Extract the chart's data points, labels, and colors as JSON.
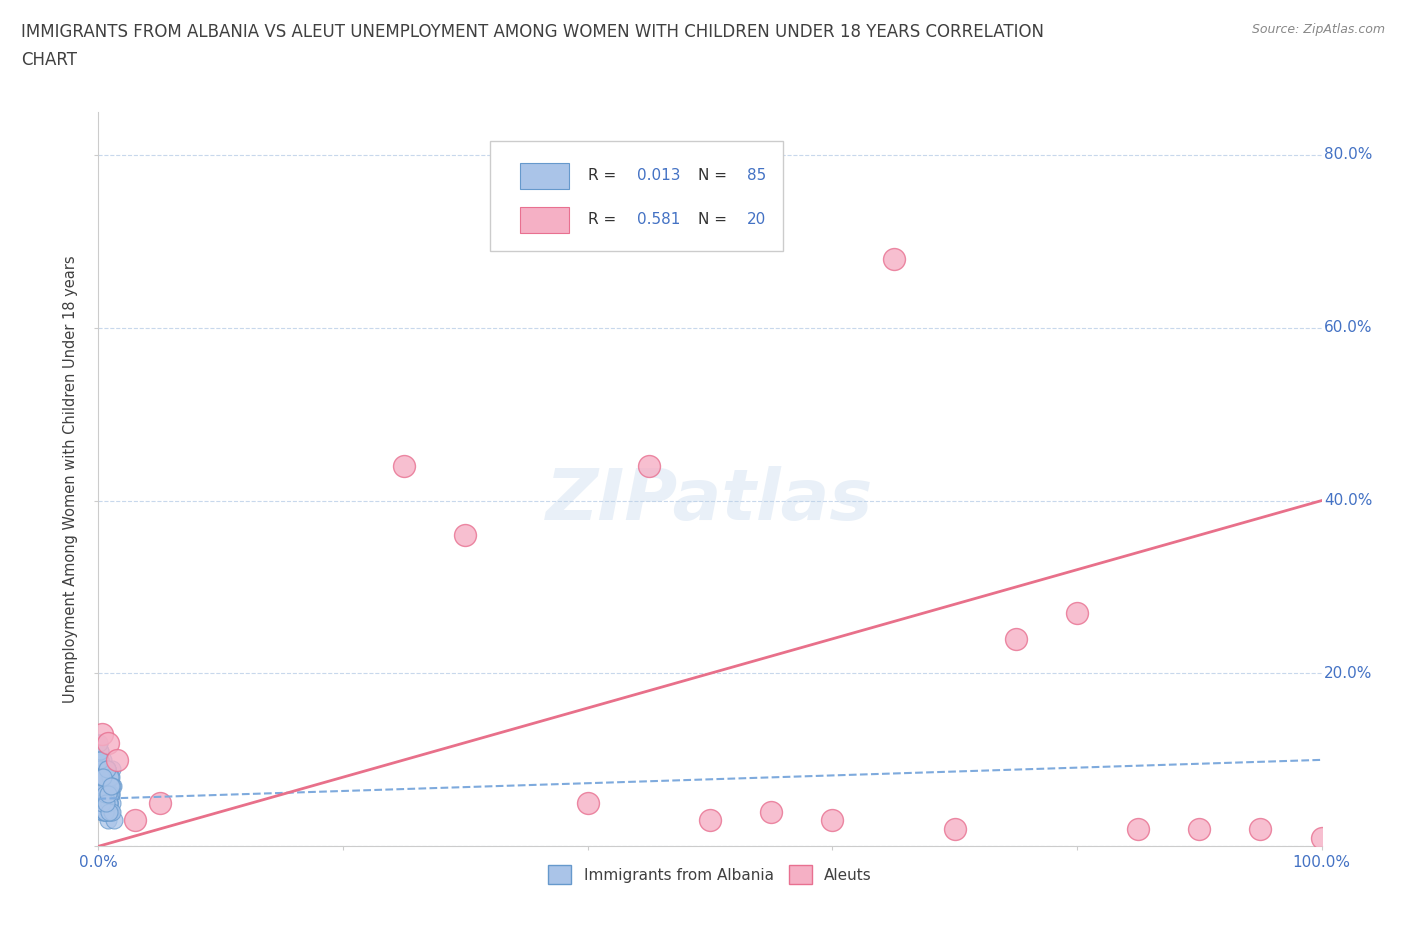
{
  "title_line1": "IMMIGRANTS FROM ALBANIA VS ALEUT UNEMPLOYMENT AMONG WOMEN WITH CHILDREN UNDER 18 YEARS CORRELATION",
  "title_line2": "CHART",
  "source": "Source: ZipAtlas.com",
  "ylabel": "Unemployment Among Women with Children Under 18 years",
  "xlim": [
    0.0,
    100.0
  ],
  "ylim": [
    0.0,
    85.0
  ],
  "xticks": [
    0,
    20,
    40,
    60,
    80,
    100
  ],
  "xticklabels": [
    "0.0%",
    "",
    "",
    "",
    "",
    "100.0%"
  ],
  "yticks": [
    0,
    20,
    40,
    60,
    80
  ],
  "yticklabels_right": [
    "0.0%",
    "20.0%",
    "40.0%",
    "60.0%",
    "80.0%"
  ],
  "albania_x": [
    0.1,
    0.15,
    0.2,
    0.25,
    0.3,
    0.35,
    0.4,
    0.45,
    0.5,
    0.55,
    0.6,
    0.65,
    0.7,
    0.75,
    0.8,
    0.85,
    0.9,
    0.95,
    1.0,
    1.05,
    1.1,
    1.15,
    1.2,
    1.3,
    0.12,
    0.18,
    0.22,
    0.28,
    0.32,
    0.38,
    0.42,
    0.48,
    0.52,
    0.58,
    0.62,
    0.68,
    0.72,
    0.78,
    0.82,
    0.88,
    0.92,
    0.98,
    1.02,
    0.15,
    0.25,
    0.35,
    0.45,
    0.55,
    0.65,
    0.75,
    0.85,
    0.95,
    0.08,
    0.13,
    0.23,
    0.33,
    0.43,
    0.53,
    0.63,
    0.73,
    0.83,
    0.93,
    1.03,
    0.17,
    0.27,
    0.37,
    0.47,
    0.57,
    0.67,
    0.77,
    0.87,
    0.97,
    1.07,
    0.05,
    0.1,
    0.2,
    0.3,
    0.5,
    0.7,
    0.9,
    1.1,
    0.4,
    0.6,
    0.8,
    1.0
  ],
  "albania_y": [
    5,
    8,
    6,
    9,
    4,
    7,
    10,
    6,
    5,
    8,
    7,
    4,
    9,
    6,
    3,
    8,
    5,
    7,
    6,
    4,
    9,
    5,
    7,
    3,
    11,
    6,
    8,
    5,
    7,
    4,
    9,
    6,
    5,
    8,
    7,
    4,
    9,
    6,
    5,
    8,
    4,
    7,
    6,
    10,
    8,
    5,
    7,
    4,
    9,
    6,
    5,
    8,
    12,
    9,
    6,
    5,
    8,
    4,
    7,
    9,
    5,
    6,
    8,
    11,
    7,
    5,
    8,
    4,
    9,
    6,
    5,
    8,
    4,
    12,
    10,
    8,
    5,
    6,
    9,
    4,
    7,
    8,
    5,
    6,
    7
  ],
  "aleut_x": [
    0.3,
    0.8,
    1.5,
    3.0,
    25.0,
    30.0,
    40.0,
    45.0,
    50.0,
    55.0,
    60.0,
    65.0,
    70.0,
    75.0,
    80.0,
    85.0,
    90.0,
    95.0,
    100.0,
    5.0
  ],
  "aleut_y": [
    13,
    12,
    10,
    3,
    44,
    36,
    5,
    44,
    3,
    4,
    3,
    68,
    2,
    24,
    27,
    2,
    2,
    2,
    1,
    5
  ],
  "albania_color": "#aac4e8",
  "albania_edge": "#6699cc",
  "aleut_color": "#f5b0c5",
  "aleut_edge": "#e87090",
  "albania_R": 0.013,
  "albania_N": 85,
  "aleut_R": 0.581,
  "aleut_N": 20,
  "trend_albania_color": "#7eaadd",
  "trend_aleut_color": "#e8708a",
  "background_color": "#ffffff",
  "legend_R_N_color": "#4472c4",
  "watermark_text": "ZIPatlas",
  "title_color": "#404040",
  "axis_color": "#404040",
  "tick_color": "#4472c4",
  "grid_color": "#c8d8ec",
  "source_color": "#888888",
  "aleut_trend_intercept": 0.0,
  "aleut_trend_slope": 0.4,
  "albania_trend_intercept": 5.5,
  "albania_trend_slope": 0.045
}
